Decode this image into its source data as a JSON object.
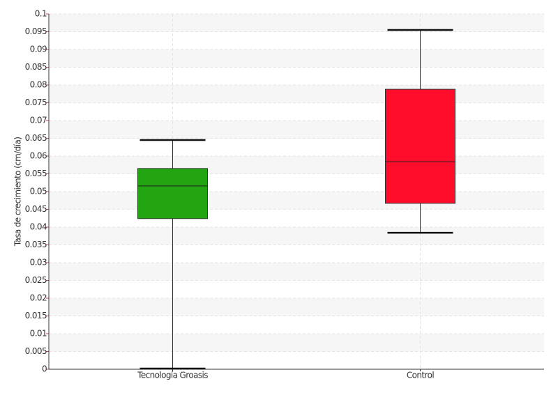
{
  "chart_data": {
    "type": "box",
    "y_label": "Tasa de crecimiento (cm/día)",
    "categories": [
      "Tecnología Groasis",
      "Control"
    ],
    "colors": [
      "#22a511",
      "#ff0d2a"
    ],
    "min": [
      0.0002,
      0.0384
    ],
    "q1": [
      0.0424,
      0.0467
    ],
    "median": [
      0.0516,
      0.0584
    ],
    "q3": [
      0.0565,
      0.0788
    ],
    "max": [
      0.0645,
      0.0955
    ],
    "ylim": [
      0,
      0.1
    ],
    "yticks": [
      0,
      0.005,
      0.01,
      0.015,
      0.02,
      0.025,
      0.03,
      0.035,
      0.04,
      0.045,
      0.05,
      0.055,
      0.06,
      0.065,
      0.07,
      0.075,
      0.08,
      0.085,
      0.09,
      0.095,
      0.1
    ],
    "grid": true
  }
}
